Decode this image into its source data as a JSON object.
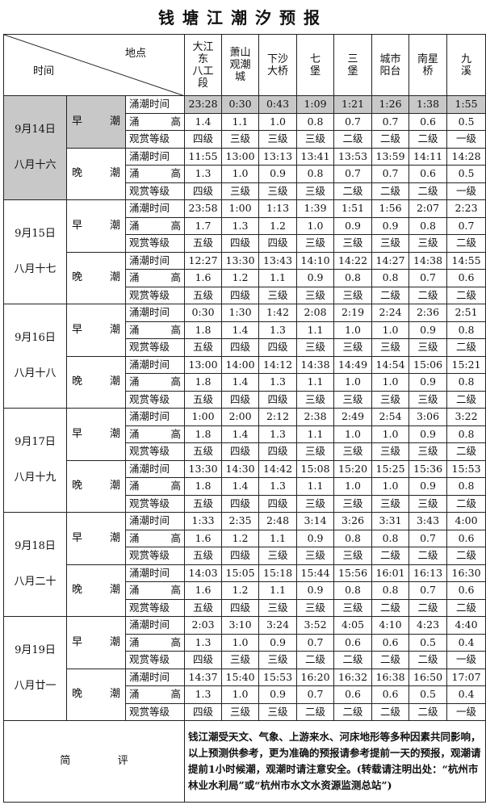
{
  "title": "钱塘江潮汐预报",
  "header": {
    "place_label": "地点",
    "time_label": "时间",
    "locations": [
      "大江\n东\n八工\n段",
      "萧山\n观潮\n城",
      "下沙\n大桥",
      "七\n堡",
      "三\n堡",
      "城市\n阳台",
      "南星\n桥",
      "九\n溪"
    ]
  },
  "row_labels": [
    "涌潮时间",
    "涌 高",
    "观赏等级"
  ],
  "highlight_color": "#c8c8c8",
  "days": [
    {
      "date": "9月14日",
      "lunar": "八月十六",
      "tides": [
        {
          "label": "早 潮",
          "time": [
            "23:28",
            "0:30",
            "0:43",
            "1:09",
            "1:21",
            "1:26",
            "1:38",
            "1:55"
          ],
          "height": [
            "1.4",
            "1.1",
            "1.0",
            "0.8",
            "0.7",
            "0.7",
            "0.6",
            "0.5"
          ],
          "grade": [
            "四级",
            "三级",
            "三级",
            "三级",
            "二级",
            "二级",
            "二级",
            "一级"
          ]
        },
        {
          "label": "晚 潮",
          "time": [
            "11:55",
            "13:00",
            "13:13",
            "13:41",
            "13:53",
            "13:59",
            "14:11",
            "14:28"
          ],
          "height": [
            "1.3",
            "1.0",
            "0.9",
            "0.8",
            "0.7",
            "0.7",
            "0.6",
            "0.5"
          ],
          "grade": [
            "四级",
            "三级",
            "三级",
            "三级",
            "二级",
            "二级",
            "二级",
            "一级"
          ]
        }
      ]
    },
    {
      "date": "9月15日",
      "lunar": "八月十七",
      "tides": [
        {
          "label": "早 潮",
          "time": [
            "23:58",
            "1:00",
            "1:13",
            "1:39",
            "1:51",
            "1:56",
            "2:07",
            "2:23"
          ],
          "height": [
            "1.7",
            "1.3",
            "1.2",
            "1.0",
            "0.9",
            "0.9",
            "0.8",
            "0.7"
          ],
          "grade": [
            "五级",
            "四级",
            "四级",
            "三级",
            "三级",
            "三级",
            "三级",
            "二级"
          ]
        },
        {
          "label": "晚 潮",
          "time": [
            "12:27",
            "13:30",
            "13:43",
            "14:10",
            "14:22",
            "14:27",
            "14:38",
            "14:55"
          ],
          "height": [
            "1.6",
            "1.2",
            "1.1",
            "0.9",
            "0.8",
            "0.8",
            "0.7",
            "0.6"
          ],
          "grade": [
            "五级",
            "四级",
            "三级",
            "三级",
            "三级",
            "二级",
            "二级",
            "二级"
          ]
        }
      ]
    },
    {
      "date": "9月16日",
      "lunar": "八月十八",
      "tides": [
        {
          "label": "早 潮",
          "time": [
            "0:30",
            "1:30",
            "1:42",
            "2:08",
            "2:19",
            "2:24",
            "2:36",
            "2:51"
          ],
          "height": [
            "1.8",
            "1.4",
            "1.3",
            "1.1",
            "1.0",
            "1.0",
            "0.9",
            "0.8"
          ],
          "grade": [
            "五级",
            "四级",
            "四级",
            "三级",
            "三级",
            "三级",
            "三级",
            "二级"
          ]
        },
        {
          "label": "晚 潮",
          "time": [
            "13:00",
            "14:00",
            "14:12",
            "14:38",
            "14:49",
            "14:54",
            "15:06",
            "15:21"
          ],
          "height": [
            "1.8",
            "1.4",
            "1.3",
            "1.1",
            "1.0",
            "1.0",
            "0.9",
            "0.8"
          ],
          "grade": [
            "五级",
            "四级",
            "四级",
            "三级",
            "三级",
            "三级",
            "三级",
            "二级"
          ]
        }
      ]
    },
    {
      "date": "9月17日",
      "lunar": "八月十九",
      "tides": [
        {
          "label": "早 潮",
          "time": [
            "1:00",
            "2:00",
            "2:12",
            "2:38",
            "2:49",
            "2:54",
            "3:06",
            "3:22"
          ],
          "height": [
            "1.8",
            "1.4",
            "1.3",
            "1.1",
            "1.0",
            "1.0",
            "0.9",
            "0.8"
          ],
          "grade": [
            "五级",
            "四级",
            "四级",
            "三级",
            "三级",
            "三级",
            "三级",
            "二级"
          ]
        },
        {
          "label": "晚 潮",
          "time": [
            "13:30",
            "14:30",
            "14:42",
            "15:08",
            "15:20",
            "15:25",
            "15:36",
            "15:53"
          ],
          "height": [
            "1.8",
            "1.4",
            "1.3",
            "1.1",
            "1.0",
            "1.0",
            "0.9",
            "0.8"
          ],
          "grade": [
            "五级",
            "四级",
            "四级",
            "三级",
            "三级",
            "三级",
            "三级",
            "二级"
          ]
        }
      ]
    },
    {
      "date": "9月18日",
      "lunar": "八月二十",
      "tides": [
        {
          "label": "早 潮",
          "time": [
            "1:33",
            "2:35",
            "2:48",
            "3:14",
            "3:26",
            "3:31",
            "3:43",
            "4:00"
          ],
          "height": [
            "1.6",
            "1.2",
            "1.1",
            "0.9",
            "0.8",
            "0.8",
            "0.7",
            "0.6"
          ],
          "grade": [
            "五级",
            "四级",
            "三级",
            "三级",
            "三级",
            "二级",
            "二级",
            "二级"
          ]
        },
        {
          "label": "晚 潮",
          "time": [
            "14:03",
            "15:05",
            "15:18",
            "15:44",
            "15:56",
            "16:01",
            "16:13",
            "16:30"
          ],
          "height": [
            "1.6",
            "1.2",
            "1.1",
            "0.9",
            "0.8",
            "0.8",
            "0.7",
            "0.6"
          ],
          "grade": [
            "五级",
            "四级",
            "三级",
            "三级",
            "三级",
            "二级",
            "二级",
            "二级"
          ]
        }
      ]
    },
    {
      "date": "9月19日",
      "lunar": "八月廿一",
      "tides": [
        {
          "label": "早 潮",
          "time": [
            "2:03",
            "3:10",
            "3:24",
            "3:52",
            "4:05",
            "4:10",
            "4:23",
            "4:40"
          ],
          "height": [
            "1.3",
            "1.0",
            "0.9",
            "0.7",
            "0.6",
            "0.6",
            "0.5",
            "0.4"
          ],
          "grade": [
            "四级",
            "三级",
            "三级",
            "二级",
            "二级",
            "二级",
            "二级",
            "一级"
          ]
        },
        {
          "label": "晚 潮",
          "time": [
            "14:37",
            "15:40",
            "15:53",
            "16:20",
            "16:32",
            "16:38",
            "16:50",
            "17:07"
          ],
          "height": [
            "1.3",
            "1.0",
            "0.9",
            "0.7",
            "0.6",
            "0.6",
            "0.5",
            "0.4"
          ],
          "grade": [
            "四级",
            "三级",
            "三级",
            "二级",
            "二级",
            "二级",
            "二级",
            "一级"
          ]
        }
      ]
    }
  ],
  "footer": {
    "label": "简 评",
    "note": "钱江潮受天文、气象、上游来水、河床地形等多种因素共同影响，以上预测供参考，更为准确的预报请参考提前一天的预报，观潮请提前1小时候潮，观潮时请注意安全。(转载请注明出处：“杭州市林业水利局”或“杭州市水文水资源监测总站”)"
  }
}
